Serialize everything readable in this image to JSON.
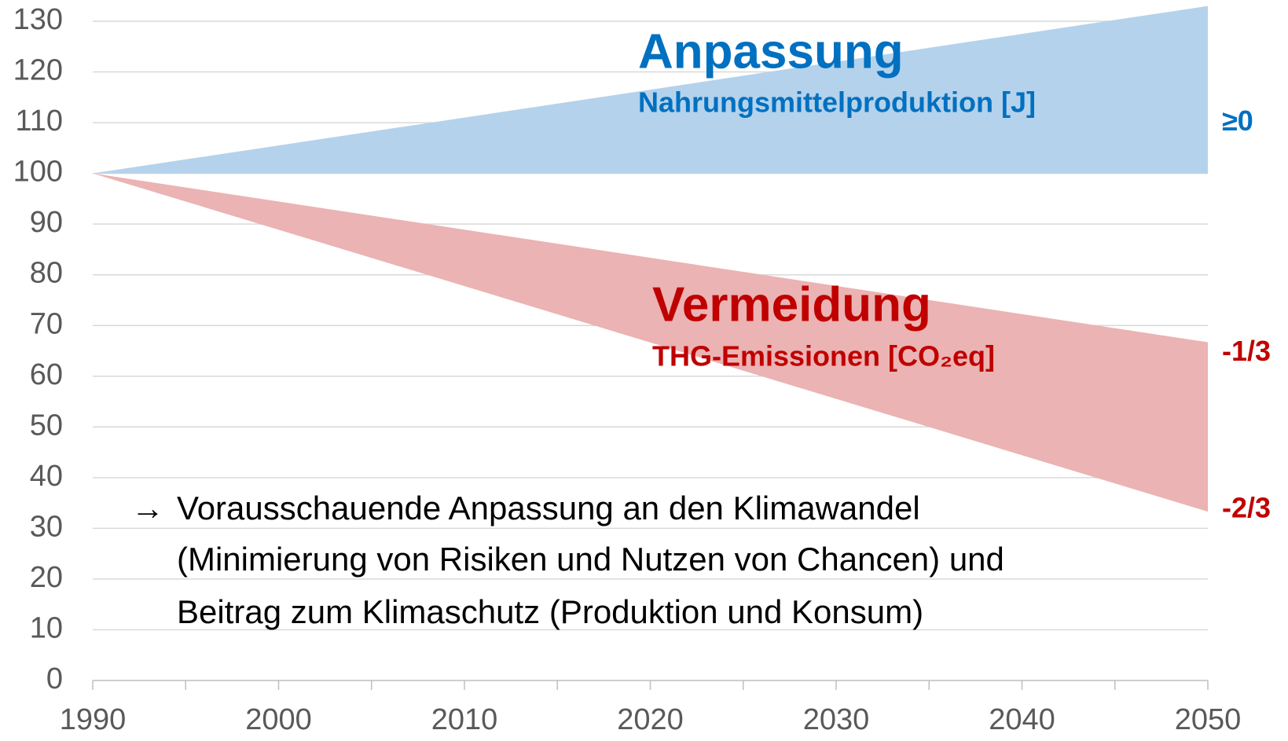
{
  "chart_data": {
    "type": "area_range",
    "x": [
      1990,
      2050
    ],
    "series": [
      {
        "name": "Anpassung",
        "subtitle": "Nahrungsmittelproduktion [J]",
        "color": "#0070c0",
        "fill": "#b4d2ec",
        "upper": [
          100,
          133
        ],
        "lower": [
          100,
          100
        ],
        "end_labels": [
          "≥0"
        ]
      },
      {
        "name": "Vermeidung",
        "subtitle": "THG-Emissionen [CO₂eq]",
        "color": "#c00000",
        "fill": "#ebb3b3",
        "upper": [
          100,
          66.7
        ],
        "lower": [
          100,
          33.3
        ],
        "end_labels": [
          "-1/3",
          "-2/3"
        ]
      }
    ],
    "xlim": [
      1990,
      2050
    ],
    "xticks": [
      1990,
      2000,
      2010,
      2020,
      2030,
      2040,
      2050
    ],
    "xminorticks": [
      1995,
      2005,
      2015,
      2025,
      2035,
      2045
    ],
    "ylim": [
      0,
      130
    ],
    "yticks": [
      0,
      10,
      20,
      30,
      40,
      50,
      60,
      70,
      80,
      90,
      100,
      110,
      120,
      130
    ],
    "grid": true,
    "note_marker": "→",
    "note": [
      "Vorausschauende Anpassung an den Klimawandel",
      "(Minimierung von Risiken und Nutzen von Chancen) und",
      "Beitrag zum Klimaschutz (Produktion und Konsum)"
    ]
  }
}
